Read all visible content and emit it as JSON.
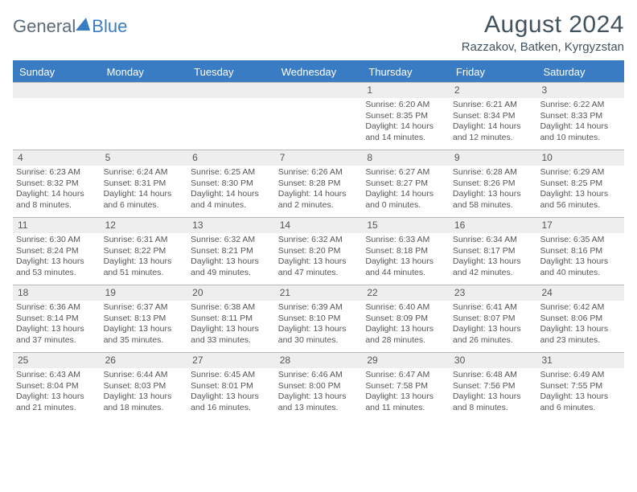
{
  "logo": {
    "word1": "General",
    "word2": "Blue"
  },
  "title": {
    "month": "August 2024",
    "location": "Razzakov, Batken, Kyrgyzstan"
  },
  "day_headers": [
    "Sunday",
    "Monday",
    "Tuesday",
    "Wednesday",
    "Thursday",
    "Friday",
    "Saturday"
  ],
  "colors": {
    "accent": "#3a7cc4",
    "daynum_bg": "#eeeeee",
    "border": "#b8b8b8",
    "text": "#3a3a3a",
    "header_text": "#42525e"
  },
  "weeks": [
    [
      null,
      null,
      null,
      null,
      {
        "n": "1",
        "sr": "6:20 AM",
        "ss": "8:35 PM",
        "dl": "14 hours and 14 minutes."
      },
      {
        "n": "2",
        "sr": "6:21 AM",
        "ss": "8:34 PM",
        "dl": "14 hours and 12 minutes."
      },
      {
        "n": "3",
        "sr": "6:22 AM",
        "ss": "8:33 PM",
        "dl": "14 hours and 10 minutes."
      }
    ],
    [
      {
        "n": "4",
        "sr": "6:23 AM",
        "ss": "8:32 PM",
        "dl": "14 hours and 8 minutes."
      },
      {
        "n": "5",
        "sr": "6:24 AM",
        "ss": "8:31 PM",
        "dl": "14 hours and 6 minutes."
      },
      {
        "n": "6",
        "sr": "6:25 AM",
        "ss": "8:30 PM",
        "dl": "14 hours and 4 minutes."
      },
      {
        "n": "7",
        "sr": "6:26 AM",
        "ss": "8:28 PM",
        "dl": "14 hours and 2 minutes."
      },
      {
        "n": "8",
        "sr": "6:27 AM",
        "ss": "8:27 PM",
        "dl": "14 hours and 0 minutes."
      },
      {
        "n": "9",
        "sr": "6:28 AM",
        "ss": "8:26 PM",
        "dl": "13 hours and 58 minutes."
      },
      {
        "n": "10",
        "sr": "6:29 AM",
        "ss": "8:25 PM",
        "dl": "13 hours and 56 minutes."
      }
    ],
    [
      {
        "n": "11",
        "sr": "6:30 AM",
        "ss": "8:24 PM",
        "dl": "13 hours and 53 minutes."
      },
      {
        "n": "12",
        "sr": "6:31 AM",
        "ss": "8:22 PM",
        "dl": "13 hours and 51 minutes."
      },
      {
        "n": "13",
        "sr": "6:32 AM",
        "ss": "8:21 PM",
        "dl": "13 hours and 49 minutes."
      },
      {
        "n": "14",
        "sr": "6:32 AM",
        "ss": "8:20 PM",
        "dl": "13 hours and 47 minutes."
      },
      {
        "n": "15",
        "sr": "6:33 AM",
        "ss": "8:18 PM",
        "dl": "13 hours and 44 minutes."
      },
      {
        "n": "16",
        "sr": "6:34 AM",
        "ss": "8:17 PM",
        "dl": "13 hours and 42 minutes."
      },
      {
        "n": "17",
        "sr": "6:35 AM",
        "ss": "8:16 PM",
        "dl": "13 hours and 40 minutes."
      }
    ],
    [
      {
        "n": "18",
        "sr": "6:36 AM",
        "ss": "8:14 PM",
        "dl": "13 hours and 37 minutes."
      },
      {
        "n": "19",
        "sr": "6:37 AM",
        "ss": "8:13 PM",
        "dl": "13 hours and 35 minutes."
      },
      {
        "n": "20",
        "sr": "6:38 AM",
        "ss": "8:11 PM",
        "dl": "13 hours and 33 minutes."
      },
      {
        "n": "21",
        "sr": "6:39 AM",
        "ss": "8:10 PM",
        "dl": "13 hours and 30 minutes."
      },
      {
        "n": "22",
        "sr": "6:40 AM",
        "ss": "8:09 PM",
        "dl": "13 hours and 28 minutes."
      },
      {
        "n": "23",
        "sr": "6:41 AM",
        "ss": "8:07 PM",
        "dl": "13 hours and 26 minutes."
      },
      {
        "n": "24",
        "sr": "6:42 AM",
        "ss": "8:06 PM",
        "dl": "13 hours and 23 minutes."
      }
    ],
    [
      {
        "n": "25",
        "sr": "6:43 AM",
        "ss": "8:04 PM",
        "dl": "13 hours and 21 minutes."
      },
      {
        "n": "26",
        "sr": "6:44 AM",
        "ss": "8:03 PM",
        "dl": "13 hours and 18 minutes."
      },
      {
        "n": "27",
        "sr": "6:45 AM",
        "ss": "8:01 PM",
        "dl": "13 hours and 16 minutes."
      },
      {
        "n": "28",
        "sr": "6:46 AM",
        "ss": "8:00 PM",
        "dl": "13 hours and 13 minutes."
      },
      {
        "n": "29",
        "sr": "6:47 AM",
        "ss": "7:58 PM",
        "dl": "13 hours and 11 minutes."
      },
      {
        "n": "30",
        "sr": "6:48 AM",
        "ss": "7:56 PM",
        "dl": "13 hours and 8 minutes."
      },
      {
        "n": "31",
        "sr": "6:49 AM",
        "ss": "7:55 PM",
        "dl": "13 hours and 6 minutes."
      }
    ]
  ],
  "labels": {
    "sunrise": "Sunrise: ",
    "sunset": "Sunset: ",
    "daylight": "Daylight: "
  }
}
